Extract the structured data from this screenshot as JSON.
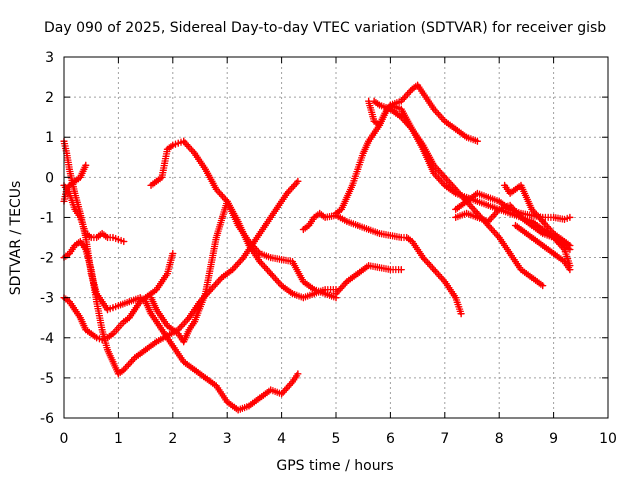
{
  "chart_data": {
    "type": "scatter",
    "title": "Day 090 of 2025, Sidereal Day-to-day VTEC variation (SDTVAR) for receiver gisb",
    "xlabel": "GPS time / hours",
    "ylabel": "SDTVAR / TECUs",
    "xlim": [
      0,
      10
    ],
    "ylim": [
      -6,
      3
    ],
    "xticks": [
      0,
      1,
      2,
      3,
      4,
      5,
      6,
      7,
      8,
      9,
      10
    ],
    "yticks": [
      -6,
      -5,
      -4,
      -3,
      -2,
      -1,
      0,
      1,
      2,
      3
    ],
    "xtick_labels": [
      "0",
      "1",
      "2",
      "3",
      "4",
      "5",
      "6",
      "7",
      "8",
      "9",
      "10"
    ],
    "ytick_labels": [
      "-6",
      "-5",
      "-4",
      "-3",
      "-2",
      "-1",
      "0",
      "1",
      "2",
      "3"
    ],
    "grid": true,
    "marker": "plus",
    "color": "#ff0000",
    "series": [
      {
        "x": [
          0,
          0.1,
          0.2,
          0.3,
          0.4,
          0.5,
          0.6,
          0.7,
          0.8,
          0.9,
          1.0,
          1.1
        ],
        "y": [
          -0.2,
          -0.4,
          -0.8,
          -1.0,
          -1.4,
          -1.5,
          -1.5,
          -1.4,
          -1.5,
          -1.5,
          -1.55,
          -1.6
        ]
      },
      {
        "x": [
          0,
          0.05,
          0.1,
          0.2,
          0.3,
          0.4
        ],
        "y": [
          -0.6,
          -0.3,
          -0.2,
          -0.1,
          0.0,
          0.3
        ]
      },
      {
        "x": [
          0,
          0.05,
          0.1,
          0.2,
          0.3,
          0.4,
          0.5,
          0.6,
          0.7,
          0.8,
          0.9,
          1.0,
          1.2,
          1.4,
          1.5,
          1.6,
          1.8,
          2.0,
          2.2,
          2.4,
          2.6,
          2.8,
          3.0,
          3.2,
          3.4,
          3.6,
          3.8,
          4.0,
          4.2,
          4.3
        ],
        "y": [
          0.9,
          0.6,
          0.2,
          -0.4,
          -0.9,
          -1.5,
          -2.4,
          -2.9,
          -3.1,
          -3.3,
          -3.25,
          -3.2,
          -3.1,
          -3.0,
          -3.1,
          -3.4,
          -3.8,
          -4.2,
          -4.6,
          -4.8,
          -5.0,
          -5.2,
          -5.6,
          -5.8,
          -5.7,
          -5.5,
          -5.3,
          -5.4,
          -5.1,
          -4.9
        ]
      },
      {
        "x": [
          0,
          0.1,
          0.2,
          0.3,
          0.4,
          0.5,
          0.6,
          0.7,
          0.8,
          0.9,
          1.0,
          1.1,
          1.3,
          1.5,
          1.7,
          1.9,
          2.1,
          2.3,
          2.5,
          2.7,
          2.9,
          3.1,
          3.3,
          3.5,
          3.7,
          3.9,
          4.1,
          4.3
        ],
        "y": [
          -2.0,
          -1.9,
          -1.7,
          -1.6,
          -1.8,
          -2.3,
          -3.1,
          -3.8,
          -4.3,
          -4.6,
          -4.9,
          -4.8,
          -4.5,
          -4.3,
          -4.1,
          -3.95,
          -3.8,
          -3.5,
          -3.1,
          -2.8,
          -2.5,
          -2.3,
          -2.0,
          -1.6,
          -1.2,
          -0.8,
          -0.4,
          -0.1
        ]
      },
      {
        "x": [
          0,
          0.1,
          0.2,
          0.3,
          0.4,
          0.5,
          0.6,
          0.7,
          0.8,
          0.9,
          1.0,
          1.1,
          1.2,
          1.3,
          1.4,
          1.5,
          1.6,
          1.7,
          1.8,
          1.9,
          2.0
        ],
        "y": [
          -3.0,
          -3.1,
          -3.3,
          -3.5,
          -3.8,
          -3.9,
          -4.0,
          -4.05,
          -4.0,
          -3.9,
          -3.75,
          -3.6,
          -3.5,
          -3.3,
          -3.1,
          -3.0,
          -2.9,
          -2.8,
          -2.6,
          -2.4,
          -1.9
        ]
      },
      {
        "x": [
          1.6,
          1.7,
          1.8,
          1.9,
          2.0,
          2.1,
          2.2,
          2.4,
          2.6,
          2.8,
          3.0,
          3.2,
          3.4,
          3.6,
          3.8,
          4.0,
          4.2,
          4.4,
          4.6,
          4.8,
          5.0
        ],
        "y": [
          -0.2,
          -0.1,
          0.0,
          0.7,
          0.8,
          0.85,
          0.9,
          0.6,
          0.2,
          -0.3,
          -0.6,
          -1.1,
          -1.7,
          -2.1,
          -2.4,
          -2.7,
          -2.9,
          -3.0,
          -2.9,
          -2.8,
          -2.8
        ]
      },
      {
        "x": [
          1.6,
          1.7,
          1.8,
          1.9,
          2.0,
          2.1,
          2.2,
          2.3,
          2.4,
          2.6,
          2.8,
          3.0,
          3.2,
          3.4,
          3.6,
          3.8,
          4.0,
          4.2,
          4.4,
          4.6,
          4.8,
          5.0
        ],
        "y": [
          -3.0,
          -3.3,
          -3.5,
          -3.7,
          -3.8,
          -3.9,
          -4.1,
          -3.8,
          -3.6,
          -2.9,
          -1.5,
          -0.6,
          -1.2,
          -1.6,
          -1.9,
          -2.0,
          -2.05,
          -2.1,
          -2.6,
          -2.8,
          -2.9,
          -3.0
        ]
      },
      {
        "x": [
          4.4,
          4.5,
          4.6,
          4.7,
          4.8,
          5.0,
          5.2,
          5.4,
          5.6,
          5.8,
          6.0,
          6.2,
          6.3,
          6.4,
          6.6,
          6.8,
          7.0,
          7.2,
          7.3
        ],
        "y": [
          -1.3,
          -1.2,
          -1.0,
          -0.9,
          -1.0,
          -0.95,
          -1.1,
          -1.2,
          -1.3,
          -1.4,
          -1.45,
          -1.5,
          -1.5,
          -1.6,
          -2.0,
          -2.3,
          -2.6,
          -3.0,
          -3.4
        ]
      },
      {
        "x": [
          5.0,
          5.2,
          5.4,
          5.6,
          5.8,
          6.0,
          6.2
        ],
        "y": [
          -2.9,
          -2.6,
          -2.4,
          -2.2,
          -2.25,
          -2.3,
          -2.3
        ]
      },
      {
        "x": [
          5.0,
          5.1,
          5.2,
          5.3,
          5.4,
          5.5,
          5.6,
          5.7,
          5.8,
          5.9,
          6.0,
          6.2,
          6.4,
          6.5,
          6.6,
          6.8,
          7.0,
          7.2,
          7.4,
          7.6
        ],
        "y": [
          -0.9,
          -0.8,
          -0.5,
          -0.2,
          0.2,
          0.6,
          0.9,
          1.1,
          1.3,
          1.6,
          1.8,
          1.9,
          2.2,
          2.3,
          2.1,
          1.7,
          1.4,
          1.2,
          1.0,
          0.9
        ]
      },
      {
        "x": [
          5.6,
          5.7,
          5.8,
          5.9,
          6.0,
          6.2,
          6.4,
          6.6,
          6.8,
          7.0,
          7.2,
          7.4,
          7.6,
          7.8,
          8.0,
          8.2,
          8.4,
          8.6,
          8.8
        ],
        "y": [
          1.9,
          1.4,
          1.3,
          1.6,
          1.8,
          1.7,
          1.2,
          0.8,
          0.3,
          0.0,
          -0.3,
          -0.6,
          -0.9,
          -1.2,
          -1.5,
          -1.9,
          -2.3,
          -2.5,
          -2.7
        ]
      },
      {
        "x": [
          5.7,
          5.8,
          6.0,
          6.2,
          6.4,
          6.6,
          6.8,
          7.0,
          7.2,
          7.4,
          7.6,
          7.8,
          8.0,
          8.2,
          8.4,
          8.6,
          8.8,
          9.0,
          9.2,
          9.3
        ],
        "y": [
          1.9,
          1.8,
          1.7,
          1.5,
          1.2,
          0.7,
          0.1,
          -0.2,
          -0.4,
          -0.5,
          -0.6,
          -0.7,
          -0.8,
          -0.9,
          -1.0,
          -1.1,
          -1.3,
          -1.5,
          -1.8,
          -2.2
        ]
      },
      {
        "x": [
          7.2,
          7.4,
          7.6,
          7.8,
          8.0,
          8.2,
          8.4,
          8.6,
          8.8,
          9.0,
          9.2,
          9.3
        ],
        "y": [
          -0.8,
          -0.6,
          -0.4,
          -0.5,
          -0.6,
          -0.8,
          -0.9,
          -0.95,
          -1.0,
          -1.0,
          -1.05,
          -1.0
        ]
      },
      {
        "x": [
          7.2,
          7.4,
          7.6,
          7.8,
          8.0,
          8.2,
          8.4,
          8.6,
          8.8,
          9.0,
          9.2,
          9.3
        ],
        "y": [
          -1.0,
          -0.9,
          -1.0,
          -1.1,
          -0.8,
          -0.7,
          -1.0,
          -1.2,
          -1.4,
          -1.5,
          -1.7,
          -1.8
        ]
      },
      {
        "x": [
          8.1,
          8.2,
          8.3,
          8.4,
          8.5,
          8.6,
          8.8,
          9.0,
          9.2,
          9.3
        ],
        "y": [
          -0.2,
          -0.4,
          -0.3,
          -0.2,
          -0.5,
          -0.8,
          -1.1,
          -1.4,
          -1.6,
          -1.7
        ]
      },
      {
        "x": [
          8.3,
          8.4,
          8.6,
          8.8,
          9.0,
          9.2,
          9.3
        ],
        "y": [
          -1.2,
          -1.3,
          -1.5,
          -1.7,
          -1.9,
          -2.1,
          -2.3
        ]
      }
    ]
  }
}
